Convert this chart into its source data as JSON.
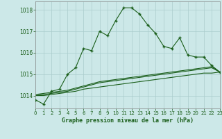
{
  "title": "Graphe pression niveau de la mer (hPa)",
  "bg_color": "#cce8e8",
  "grid_color": "#aacccc",
  "line_color": "#1a5e1a",
  "x_ticks": [
    0,
    1,
    2,
    3,
    4,
    5,
    6,
    7,
    8,
    9,
    10,
    11,
    12,
    13,
    14,
    15,
    16,
    17,
    18,
    19,
    20,
    21,
    22,
    23
  ],
  "y_ticks": [
    1014,
    1015,
    1016,
    1017,
    1018
  ],
  "ylim": [
    1013.4,
    1018.4
  ],
  "xlim": [
    0,
    23
  ],
  "series_main": [
    1013.8,
    1013.6,
    1014.2,
    1014.3,
    1015.0,
    1015.3,
    1016.2,
    1016.1,
    1017.0,
    1016.8,
    1017.5,
    1018.1,
    1018.1,
    1017.8,
    1017.3,
    1016.9,
    1016.3,
    1016.2,
    1016.7,
    1015.9,
    1015.8,
    1015.8,
    1015.4,
    1015.1
  ],
  "series_flat1": [
    1014.0,
    1014.0,
    1014.05,
    1014.1,
    1014.15,
    1014.2,
    1014.3,
    1014.35,
    1014.4,
    1014.45,
    1014.5,
    1014.55,
    1014.6,
    1014.65,
    1014.7,
    1014.75,
    1014.8,
    1014.85,
    1014.9,
    1014.95,
    1015.0,
    1015.05,
    1015.05,
    1015.1
  ],
  "series_flat2": [
    1014.0,
    1014.05,
    1014.1,
    1014.15,
    1014.2,
    1014.3,
    1014.4,
    1014.5,
    1014.6,
    1014.65,
    1014.7,
    1014.75,
    1014.8,
    1014.85,
    1014.9,
    1014.95,
    1015.0,
    1015.05,
    1015.1,
    1015.15,
    1015.2,
    1015.25,
    1015.3,
    1015.1
  ],
  "series_flat3": [
    1014.05,
    1014.1,
    1014.15,
    1014.2,
    1014.25,
    1014.35,
    1014.45,
    1014.55,
    1014.65,
    1014.7,
    1014.75,
    1014.8,
    1014.85,
    1014.9,
    1014.95,
    1015.0,
    1015.05,
    1015.1,
    1015.15,
    1015.2,
    1015.25,
    1015.3,
    1015.35,
    1015.1
  ]
}
